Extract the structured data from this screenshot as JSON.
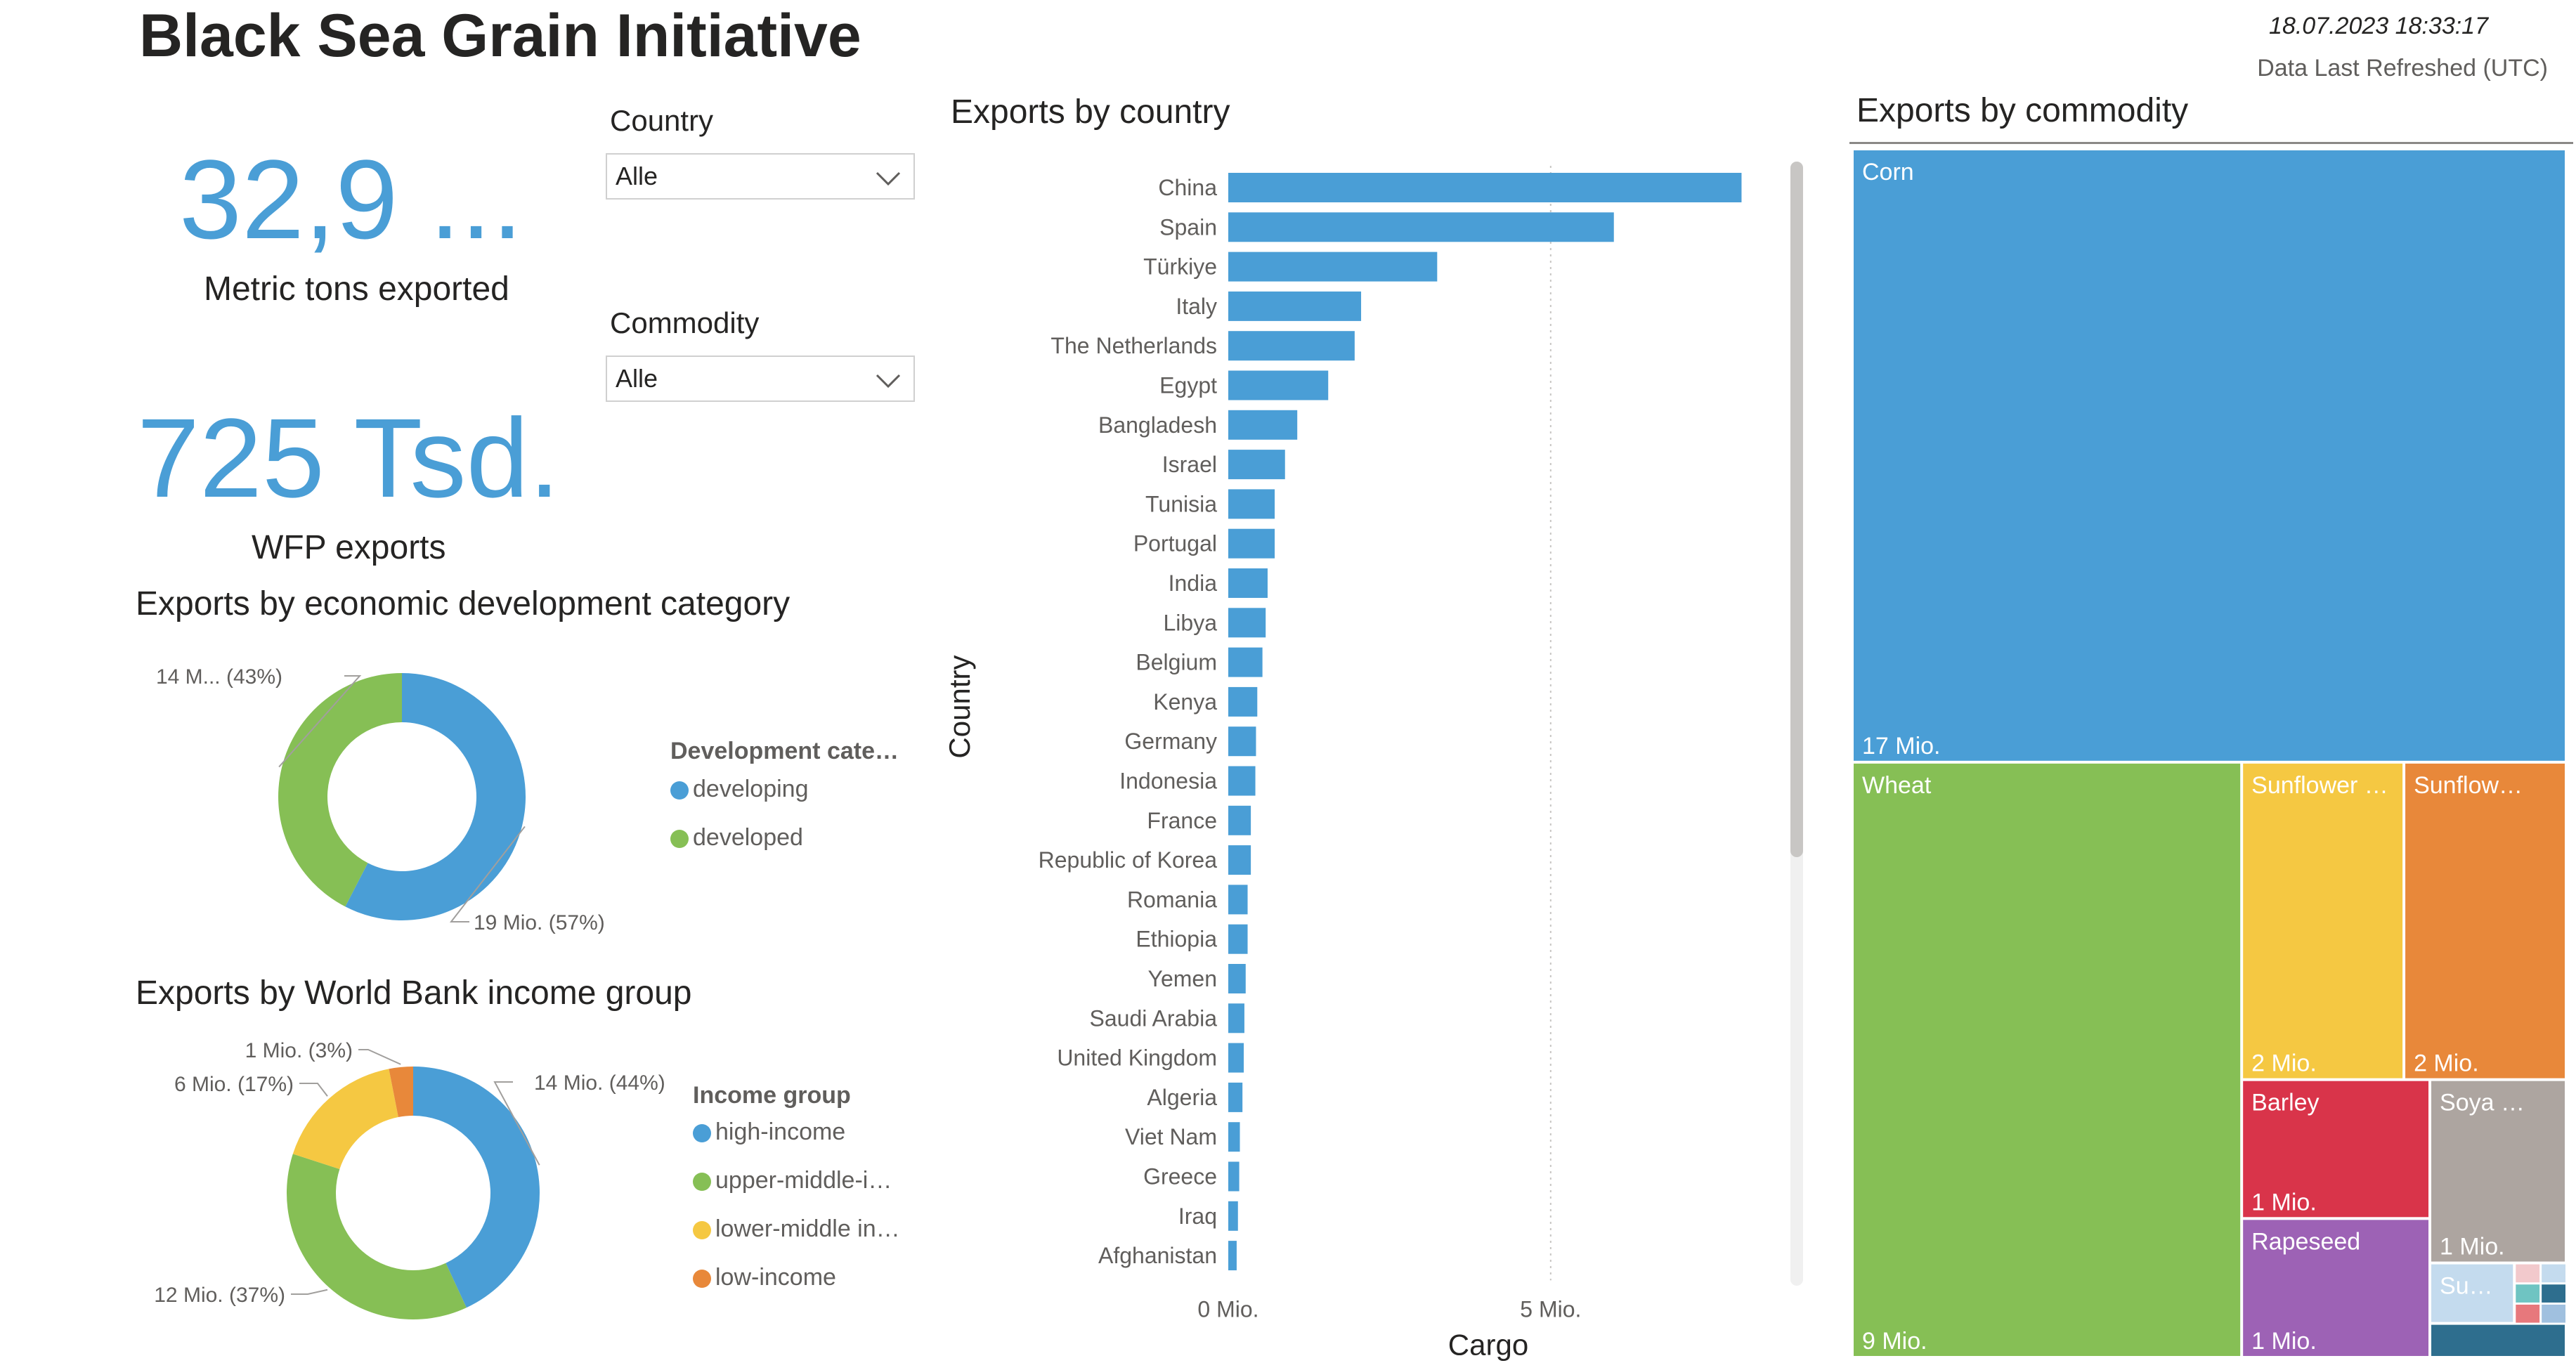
{
  "header": {
    "title": "Black Sea Grain Initiative",
    "timestamp": "18.07.2023 18:33:17",
    "refresh_label": "Data Last Refreshed (UTC)"
  },
  "kpis": [
    {
      "value": "32,9 ...",
      "label": "Metric tons exported"
    },
    {
      "value": "725 Tsd.",
      "label": "WFP exports"
    }
  ],
  "slicers": {
    "country": {
      "label": "Country",
      "value": "Alle"
    },
    "commodity": {
      "label": "Commodity",
      "value": "Alle"
    }
  },
  "icons": {
    "dropdown": "chevron-down-icon"
  },
  "colors": {
    "blue": "#4a9ed6",
    "green": "#86bf55",
    "yellow": "#f5c842",
    "orange": "#e8883a",
    "red": "#d9344a",
    "gray": "#ada5a0",
    "purple": "#9d62b5",
    "lightblue": "#c4dbee",
    "teal": "#2e6e8e"
  },
  "chart_data": [
    {
      "type": "pie",
      "variant": "donut",
      "title": "Exports by economic development category",
      "legend_title": "Development cate…",
      "legend_position": "right",
      "slices": [
        {
          "name": "developing",
          "value": 19,
          "label": "19 Mio. (57%)",
          "color": "#4a9ed6"
        },
        {
          "name": "developed",
          "value": 14,
          "label": "14 M... (43%)",
          "color": "#86bf55"
        }
      ]
    },
    {
      "type": "pie",
      "variant": "donut",
      "title": "Exports by World Bank income group",
      "legend_title": "Income group",
      "legend_position": "right",
      "slices": [
        {
          "name": "high-income",
          "value": 14,
          "label": "14 Mio. (44%)",
          "color": "#4a9ed6"
        },
        {
          "name": "upper-middle-i…",
          "value": 12,
          "label": "12 Mio. (37%)",
          "color": "#86bf55"
        },
        {
          "name": "lower-middle in…",
          "value": 5.5,
          "label": "6 Mio. (17%)",
          "color": "#f5c842"
        },
        {
          "name": "low-income",
          "value": 1,
          "label": "1 Mio. (3%)",
          "color": "#e8883a"
        }
      ]
    },
    {
      "type": "bar",
      "orientation": "horizontal",
      "title": "Exports by country",
      "xlabel": "Cargo",
      "ylabel": "Country",
      "xlim": [
        0,
        8.5
      ],
      "xticks": [
        {
          "value": 0,
          "label": "0 Mio."
        },
        {
          "value": 5,
          "label": "5 Mio."
        }
      ],
      "grid": true,
      "color": "#4a9ed6",
      "categories": [
        "China",
        "Spain",
        "Türkiye",
        "Italy",
        "The Netherlands",
        "Egypt",
        "Bangladesh",
        "Israel",
        "Tunisia",
        "Portugal",
        "India",
        "Libya",
        "Belgium",
        "Kenya",
        "Germany",
        "Indonesia",
        "France",
        "Republic of Korea",
        "Romania",
        "Ethiopia",
        "Yemen",
        "Saudi Arabia",
        "United Kingdom",
        "Algeria",
        "Viet Nam",
        "Greece",
        "Iraq",
        "Afghanistan"
      ],
      "values": [
        7.96,
        5.98,
        3.24,
        2.06,
        1.96,
        1.55,
        1.07,
        0.88,
        0.72,
        0.72,
        0.61,
        0.58,
        0.53,
        0.45,
        0.43,
        0.42,
        0.35,
        0.35,
        0.3,
        0.3,
        0.27,
        0.25,
        0.24,
        0.22,
        0.18,
        0.17,
        0.15,
        0.13
      ]
    },
    {
      "type": "treemap",
      "title": "Exports by commodity",
      "items": [
        {
          "name": "Corn",
          "value": 17,
          "value_label": "17 Mio.",
          "color": "#4a9ed6"
        },
        {
          "name": "Wheat",
          "value": 9,
          "value_label": "9 Mio.",
          "color": "#86bf55"
        },
        {
          "name": "Sunflower …",
          "value": 2,
          "value_label": "2 Mio.",
          "color": "#f5c842"
        },
        {
          "name": "Sunflow…",
          "value": 2,
          "value_label": "2 Mio.",
          "color": "#e8883a"
        },
        {
          "name": "Barley",
          "value": 1,
          "value_label": "1 Mio.",
          "color": "#d9344a"
        },
        {
          "name": "Soya …",
          "value": 1,
          "value_label": "1 Mio.",
          "color": "#ada5a0"
        },
        {
          "name": "Rapeseed",
          "value": 1,
          "value_label": "1 Mio.",
          "color": "#9d62b5"
        },
        {
          "name": "Su…",
          "value": 0.5,
          "value_label": "",
          "color": "#c4dbee"
        }
      ]
    }
  ]
}
